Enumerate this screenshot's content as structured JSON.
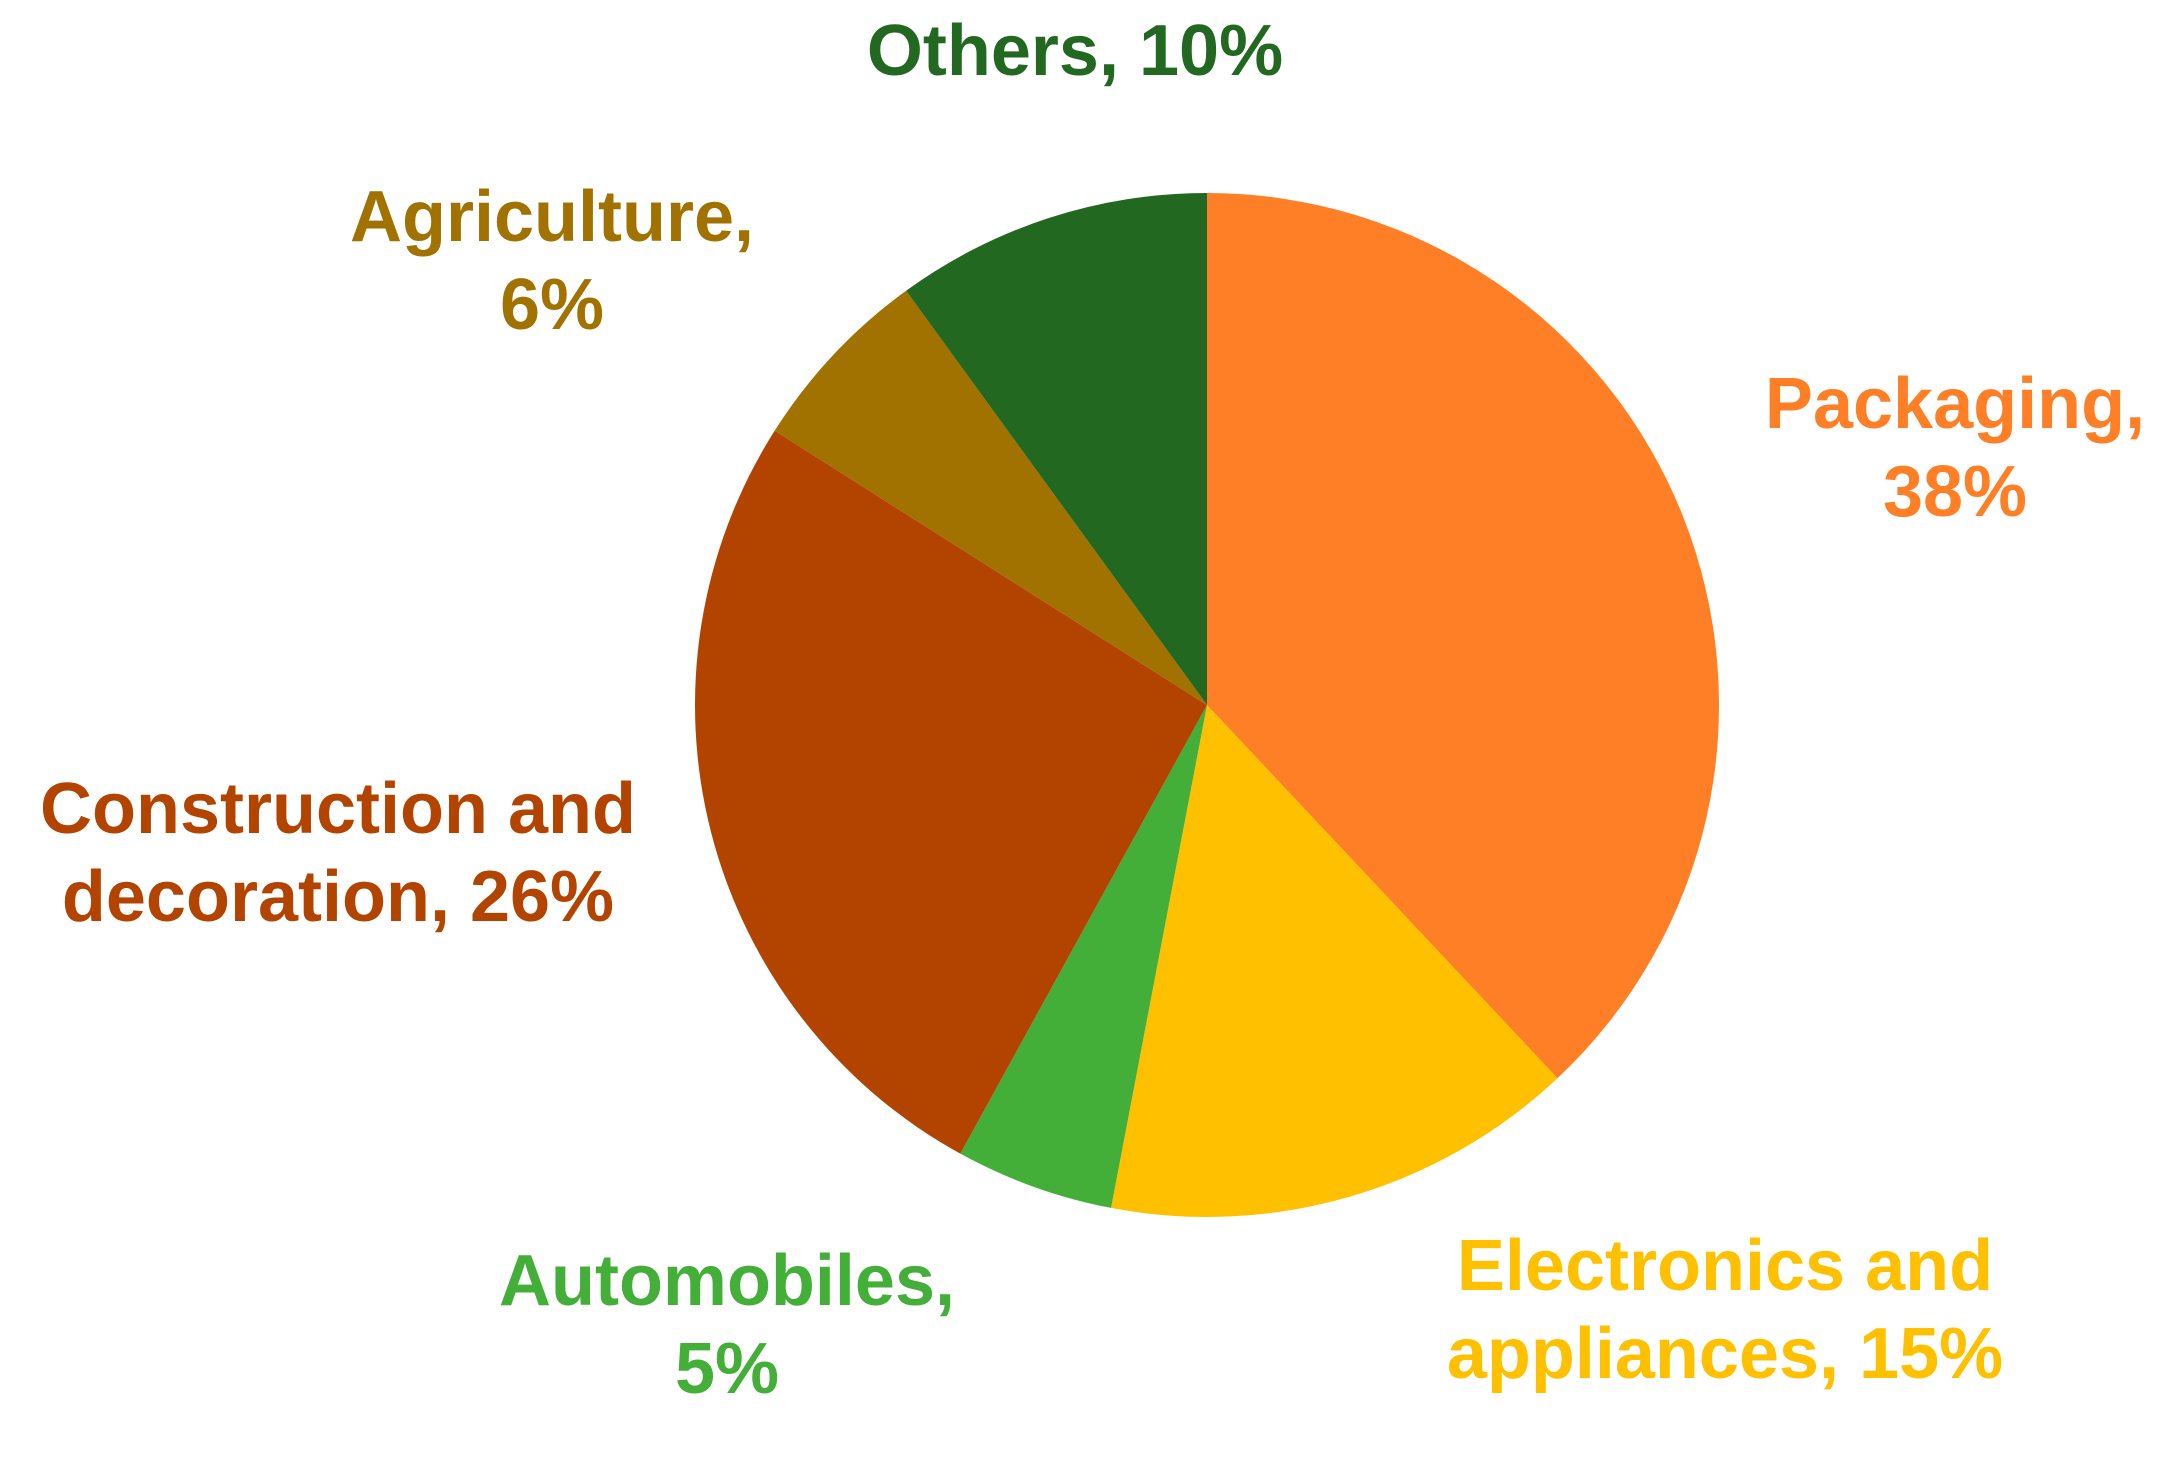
{
  "chart_data": {
    "type": "pie",
    "title": "",
    "slices": [
      {
        "name": "Packaging",
        "value": 38,
        "label": [
          "Packaging,",
          "38%"
        ],
        "color": "#FF7F27"
      },
      {
        "name": "Electronics and appliances",
        "value": 15,
        "label": [
          "Electronics and",
          "appliances, 15%"
        ],
        "color": "#FFC000"
      },
      {
        "name": "Automobiles",
        "value": 5,
        "label": [
          "Automobiles,",
          "5%"
        ],
        "color": "#43AE38"
      },
      {
        "name": "Construction and decoration",
        "value": 26,
        "label": [
          "Construction and",
          "decoration, 26%"
        ],
        "color": "#B34400"
      },
      {
        "name": "Agriculture",
        "value": 6,
        "label": [
          "Agriculture,",
          "6%"
        ],
        "color": "#A17200"
      },
      {
        "name": "Others",
        "value": 10,
        "label": [
          "Others, 10%"
        ],
        "color": "#236820"
      }
    ]
  }
}
